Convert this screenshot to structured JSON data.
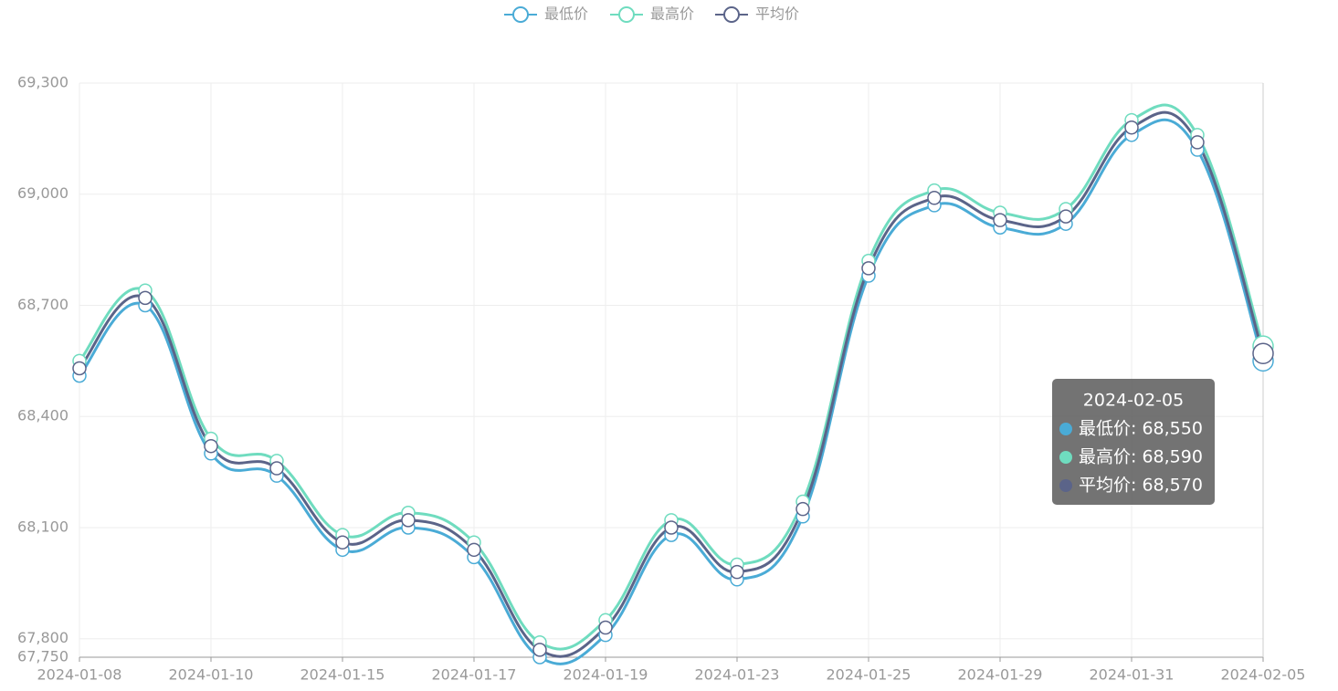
{
  "chart_data": {
    "type": "line",
    "categories": [
      "2024-01-08",
      null,
      "2024-01-10",
      null,
      "2024-01-15",
      null,
      "2024-01-17",
      null,
      "2024-01-19",
      null,
      "2024-01-23",
      null,
      "2024-01-25",
      null,
      "2024-01-29",
      null,
      "2024-01-31",
      null,
      "2024-02-05"
    ],
    "series": [
      {
        "name": "最低价",
        "color": "#4aabd6",
        "values": [
          68510,
          68700,
          68300,
          68240,
          68040,
          68100,
          68020,
          67750,
          67810,
          68080,
          67960,
          68130,
          68780,
          68970,
          68910,
          68920,
          69160,
          69120,
          68550
        ]
      },
      {
        "name": "最高价",
        "color": "#6fdcbf",
        "values": [
          68550,
          68740,
          68340,
          68280,
          68080,
          68140,
          68060,
          67790,
          67850,
          68120,
          68000,
          68170,
          68820,
          69010,
          68950,
          68960,
          69200,
          69160,
          68590
        ]
      },
      {
        "name": "平均价",
        "color": "#5b6489",
        "values": [
          68530,
          68720,
          68320,
          68260,
          68060,
          68120,
          68040,
          67770,
          67830,
          68100,
          67980,
          68150,
          68800,
          68990,
          68930,
          68940,
          69180,
          69140,
          68570
        ]
      }
    ],
    "ylim": [
      67750,
      69300
    ],
    "yticks": [
      {
        "value": 67750,
        "label": "67,750"
      },
      {
        "value": 67800,
        "label": "67,800"
      },
      {
        "value": 68100,
        "label": "68,100"
      },
      {
        "value": 68400,
        "label": "68,400"
      },
      {
        "value": 68700,
        "label": "68,700"
      },
      {
        "value": 69000,
        "label": "69,000"
      },
      {
        "value": 69300,
        "label": "69,300"
      }
    ],
    "grid": true,
    "tooltip": {
      "title": "2024-02-05",
      "rows": [
        "最低价: 68,550",
        "最高价: 68,590",
        "平均价: 68,570"
      ]
    }
  }
}
